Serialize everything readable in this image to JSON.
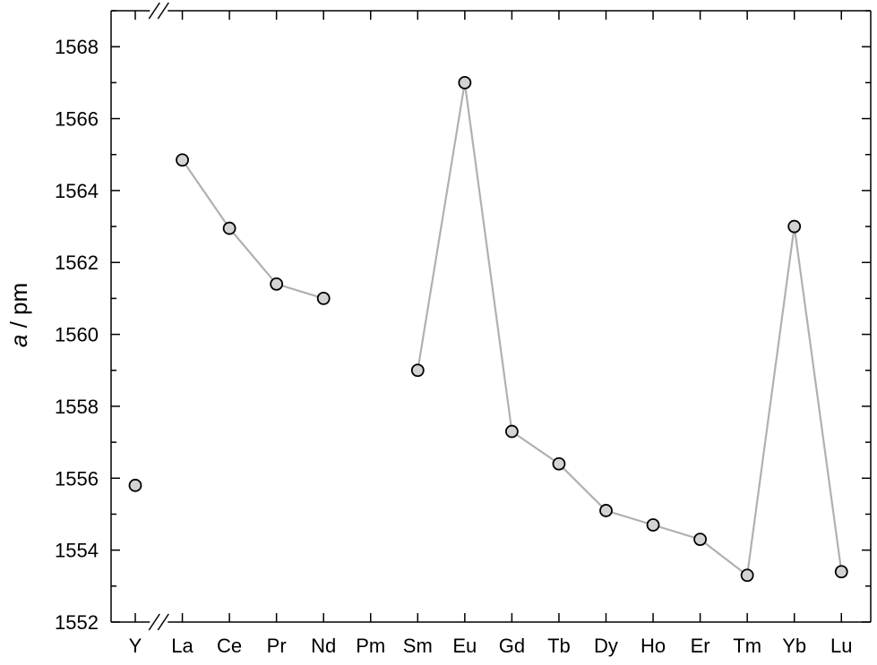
{
  "chart_data": {
    "type": "scatter",
    "title": "",
    "xlabel": "",
    "ylabel": {
      "italic": "a",
      "rest": " / pm"
    },
    "ylim": [
      1552,
      1569
    ],
    "y_major_ticks": [
      1552,
      1554,
      1556,
      1558,
      1560,
      1562,
      1564,
      1566,
      1568
    ],
    "categories": [
      "Y",
      "La",
      "Ce",
      "Pr",
      "Nd",
      "Pm",
      "Sm",
      "Eu",
      "Gd",
      "Tb",
      "Dy",
      "Ho",
      "Er",
      "Tm",
      "Yb",
      "Lu"
    ],
    "axis_break_between": [
      "Y",
      "La"
    ],
    "grid": false,
    "legend": "none",
    "marker_fill": "#d3d3d3",
    "marker_stroke": "#000000",
    "line_color": "#b0b0b0",
    "series": [
      {
        "values": [
          1555.8,
          1564.85,
          1562.95,
          1561.4,
          1561.0,
          null,
          1559.0,
          1567.0,
          1557.3,
          1556.4,
          1555.1,
          1554.7,
          1554.3,
          1553.3,
          1563.0,
          1553.4
        ],
        "connected_groups": [
          [
            "La",
            "Ce",
            "Pr",
            "Nd"
          ],
          [
            "Sm",
            "Eu",
            "Gd",
            "Tb",
            "Dy",
            "Ho",
            "Er",
            "Tm",
            "Yb",
            "Lu"
          ]
        ]
      }
    ]
  }
}
